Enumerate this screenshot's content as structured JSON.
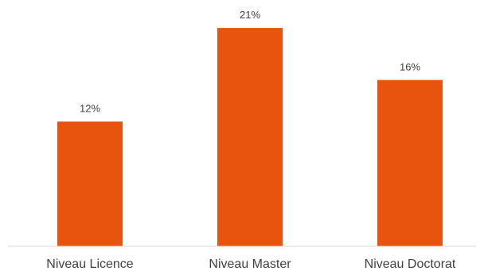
{
  "chart_data": {
    "type": "bar",
    "categories": [
      "Niveau Licence",
      "Niveau Master",
      "Niveau Doctorat"
    ],
    "values": [
      12,
      21,
      16
    ],
    "value_labels": [
      "12%",
      "21%",
      "16%"
    ],
    "unit": "%",
    "title": "",
    "xlabel": "",
    "ylabel": "",
    "ylim": [
      0,
      23
    ],
    "grid": false,
    "legend": "none",
    "bar_color": "#E8540D",
    "axis_color": "#D9D9D9",
    "text_color": "#404040"
  }
}
